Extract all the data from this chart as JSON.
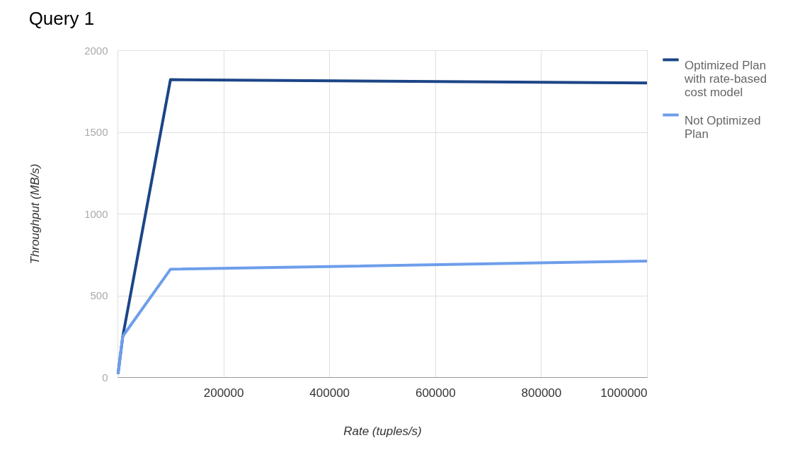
{
  "chart_data": {
    "type": "line",
    "title": "Query 1",
    "xlabel": "Rate (tuples/s)",
    "ylabel": "Throughput (MB/s)",
    "x": [
      1000,
      10000,
      100000,
      1000000
    ],
    "series": [
      {
        "name": "Optimized Plan with rate-based cost model",
        "color": "#1c4587",
        "values": [
          20,
          250,
          1820,
          1800
        ]
      },
      {
        "name": "Not Optimized Plan",
        "color": "#6d9eeb",
        "values": [
          20,
          250,
          660,
          710
        ]
      }
    ],
    "xlim": [
      0,
      1000000
    ],
    "xticks": [
      200000,
      400000,
      600000,
      800000,
      1000000
    ],
    "ylim": [
      0,
      2000
    ],
    "yticks": [
      0,
      500,
      1000,
      1500,
      2000
    ],
    "grid": true,
    "legend": "top right",
    "marker": "none",
    "line_style": "solid"
  }
}
